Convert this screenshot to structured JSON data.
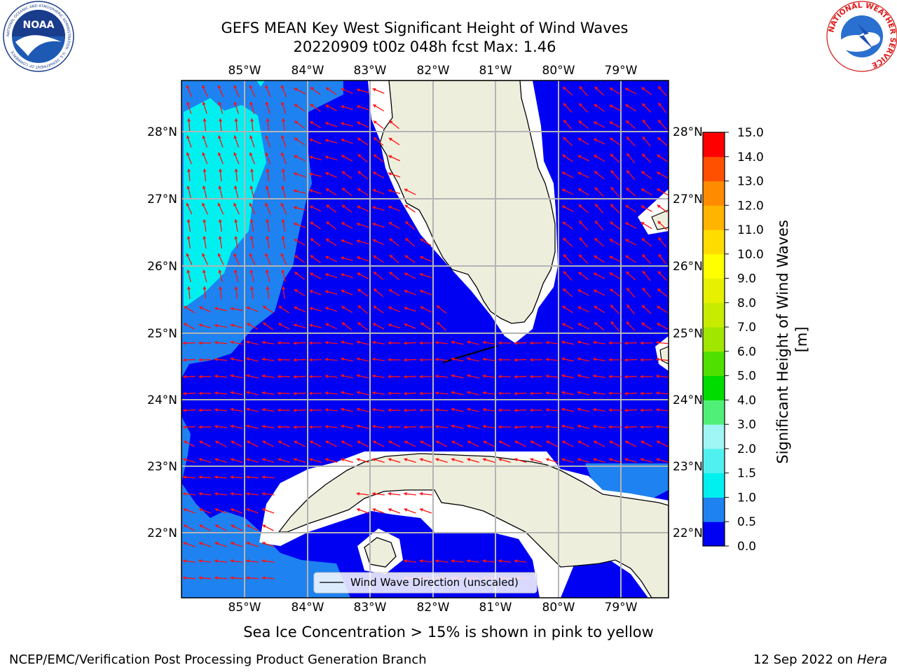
{
  "header": {
    "title_line1": "GEFS MEAN Key West Significant Height of Wind Waves",
    "title_line2": "20220909 t00z 048h fcst   Max: 1.46"
  },
  "logos": {
    "left": {
      "text": "NOAA",
      "ring_text": "NATIONAL OCEANIC AND ATMOSPHERIC ADMINISTRATION · U.S. DEPARTMENT OF COMMERCE"
    },
    "right": {
      "ring_text": "NATIONAL WEATHER SERVICE"
    }
  },
  "map": {
    "lon_labels": [
      "85°W",
      "84°W",
      "83°W",
      "82°W",
      "81°W",
      "80°W",
      "79°W"
    ],
    "lat_labels": [
      "28°N",
      "27°N",
      "26°N",
      "25°N",
      "24°N",
      "23°N",
      "22°N"
    ],
    "legend_label": "Wind Wave Direction (unscaled)",
    "colors": {
      "ocean_low": "#0000f2",
      "ocean_mid": "#1e82f0",
      "ocean_high": "#00f0f0",
      "land": "#eeeedd",
      "arrow": "#ff1010",
      "grid": "#b4b4b4"
    }
  },
  "colorbar": {
    "label": "Significant Height of Wind Waves [m]",
    "ticks": [
      "0.0",
      "0.5",
      "1.0",
      "1.5",
      "2.0",
      "3.0",
      "4.0",
      "5.0",
      "6.0",
      "7.0",
      "8.0",
      "9.0",
      "10.0",
      "11.0",
      "12.0",
      "13.0",
      "14.0",
      "15.0"
    ],
    "colors": [
      "#0000f2",
      "#1e82f0",
      "#00f0f0",
      "#50f0f0",
      "#a0f5f5",
      "#50f078",
      "#00dc00",
      "#50e000",
      "#a0e600",
      "#c8ec00",
      "#e6f000",
      "#ffff00",
      "#ffdc00",
      "#ffb400",
      "#ff8c00",
      "#ff5000",
      "#ff0000"
    ]
  },
  "footer": {
    "note": "Sea Ice Concentration > 15% is shown in pink to yellow",
    "org": "NCEP/EMC/Verification Post Processing Product Generation Branch",
    "date": "12 Sep 2022 on",
    "host": "Hera"
  }
}
